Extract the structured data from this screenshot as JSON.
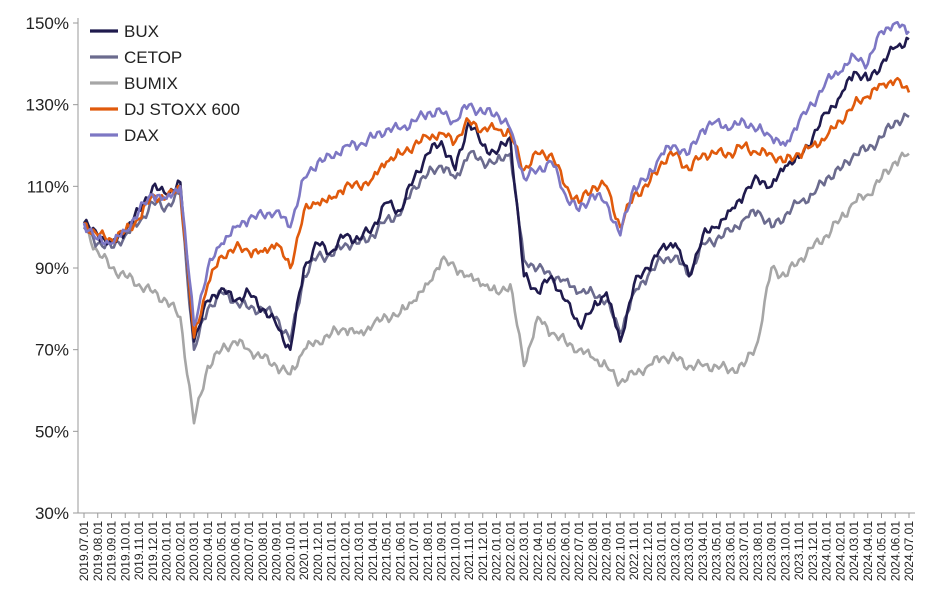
{
  "chart_data": {
    "type": "line",
    "title": "",
    "xlabel": "",
    "ylabel": "",
    "ylim": [
      30,
      150
    ],
    "y_ticks": [
      "30%",
      "50%",
      "70%",
      "90%",
      "110%",
      "130%",
      "150%"
    ],
    "y_tick_values": [
      30,
      50,
      70,
      90,
      110,
      130,
      150
    ],
    "grid": false,
    "legend_position": "top-left",
    "x": [
      "2019.07.01",
      "2019.08.01",
      "2019.09.01",
      "2019.10.01",
      "2019.11.01",
      "2019.12.01",
      "2020.01.01",
      "2020.02.01",
      "2020.03.01",
      "2020.04.01",
      "2020.05.01",
      "2020.06.01",
      "2020.07.01",
      "2020.08.01",
      "2020.09.01",
      "2020.10.01",
      "2020.11.01",
      "2020.12.01",
      "2021.01.01",
      "2021.02.01",
      "2021.03.01",
      "2021.04.01",
      "2021.05.01",
      "2021.06.01",
      "2021.07.01",
      "2021.08.01",
      "2021.09.01",
      "2021.10.01",
      "2021.11.01",
      "2021.12.01",
      "2022.01.01",
      "2022.02.01",
      "2022.03.01",
      "2022.04.01",
      "2022.05.01",
      "2022.06.01",
      "2022.07.01",
      "2022.08.01",
      "2022.09.01",
      "2022.10.01",
      "2022.11.01",
      "2022.12.01",
      "2023.01.01",
      "2023.02.01",
      "2023.03.01",
      "2023.04.01",
      "2023.05.01",
      "2023.06.01",
      "2023.07.01",
      "2023.08.01",
      "2023.09.01",
      "2023.10.01",
      "2023.11.01",
      "2023.12.01",
      "2024.01.01",
      "2024.02.01",
      "2024.03.01",
      "2024.04.01",
      "2024.05.01",
      "2024.06.01",
      "2024.07.01"
    ],
    "series": [
      {
        "name": "BUX",
        "color": "#1f1a4d",
        "values": [
          101,
          98,
          96,
          99,
          104,
          110,
          108,
          111,
          72,
          82,
          85,
          82,
          84,
          80,
          76,
          70,
          90,
          96,
          94,
          98,
          97,
          100,
          106,
          104,
          112,
          118,
          121,
          114,
          126,
          120,
          118,
          122,
          88,
          84,
          88,
          82,
          76,
          80,
          84,
          72,
          86,
          90,
          95,
          96,
          88,
          98,
          100,
          104,
          108,
          112,
          110,
          115,
          117,
          122,
          128,
          132,
          138,
          136,
          140,
          144,
          146
        ],
        "stroke_width": 2.6
      },
      {
        "name": "CETOP",
        "color": "#6b6b8e",
        "values": [
          100,
          96,
          95,
          98,
          101,
          106,
          105,
          108,
          70,
          80,
          84,
          82,
          80,
          80,
          78,
          72,
          88,
          93,
          93,
          96,
          96,
          98,
          102,
          103,
          110,
          113,
          115,
          112,
          118,
          116,
          116,
          118,
          92,
          90,
          88,
          87,
          84,
          84,
          82,
          74,
          84,
          88,
          92,
          93,
          88,
          96,
          97,
          99,
          102,
          104,
          100,
          103,
          106,
          108,
          112,
          114,
          118,
          119,
          122,
          126,
          127
        ],
        "stroke_width": 2.6
      },
      {
        "name": "BUMIX",
        "color": "#a6a6a6",
        "values": [
          100,
          94,
          90,
          88,
          86,
          84,
          82,
          78,
          52,
          66,
          70,
          72,
          70,
          68,
          66,
          64,
          70,
          72,
          74,
          75,
          74,
          76,
          78,
          79,
          82,
          86,
          92,
          90,
          88,
          86,
          84,
          86,
          66,
          78,
          74,
          72,
          70,
          68,
          66,
          62,
          64,
          66,
          68,
          68,
          66,
          66,
          66,
          65,
          66,
          72,
          90,
          88,
          92,
          95,
          98,
          102,
          106,
          108,
          112,
          116,
          118
        ],
        "stroke_width": 2.6
      },
      {
        "name": "DJ STOXX 600",
        "color": "#e05a0c",
        "values": [
          101,
          98,
          97,
          99,
          102,
          108,
          107,
          110,
          73,
          86,
          93,
          95,
          94,
          94,
          96,
          90,
          104,
          106,
          107,
          110,
          110,
          112,
          116,
          118,
          120,
          122,
          123,
          121,
          126,
          124,
          124,
          123,
          114,
          118,
          118,
          110,
          106,
          110,
          110,
          100,
          108,
          110,
          116,
          118,
          114,
          118,
          118,
          118,
          120,
          118,
          118,
          116,
          118,
          120,
          122,
          126,
          130,
          132,
          135,
          136,
          133
        ],
        "stroke_width": 2.6
      },
      {
        "name": "DAX",
        "color": "#7d77c4",
        "values": [
          101,
          97,
          96,
          99,
          104,
          108,
          107,
          110,
          76,
          90,
          96,
          100,
          102,
          103,
          104,
          100,
          112,
          116,
          117,
          120,
          120,
          122,
          124,
          124,
          126,
          128,
          128,
          126,
          130,
          128,
          128,
          124,
          112,
          114,
          116,
          108,
          104,
          108,
          106,
          98,
          110,
          112,
          118,
          120,
          118,
          124,
          126,
          124,
          126,
          124,
          122,
          120,
          126,
          130,
          136,
          138,
          142,
          140,
          148,
          150,
          148
        ],
        "stroke_width": 2.6
      }
    ]
  }
}
